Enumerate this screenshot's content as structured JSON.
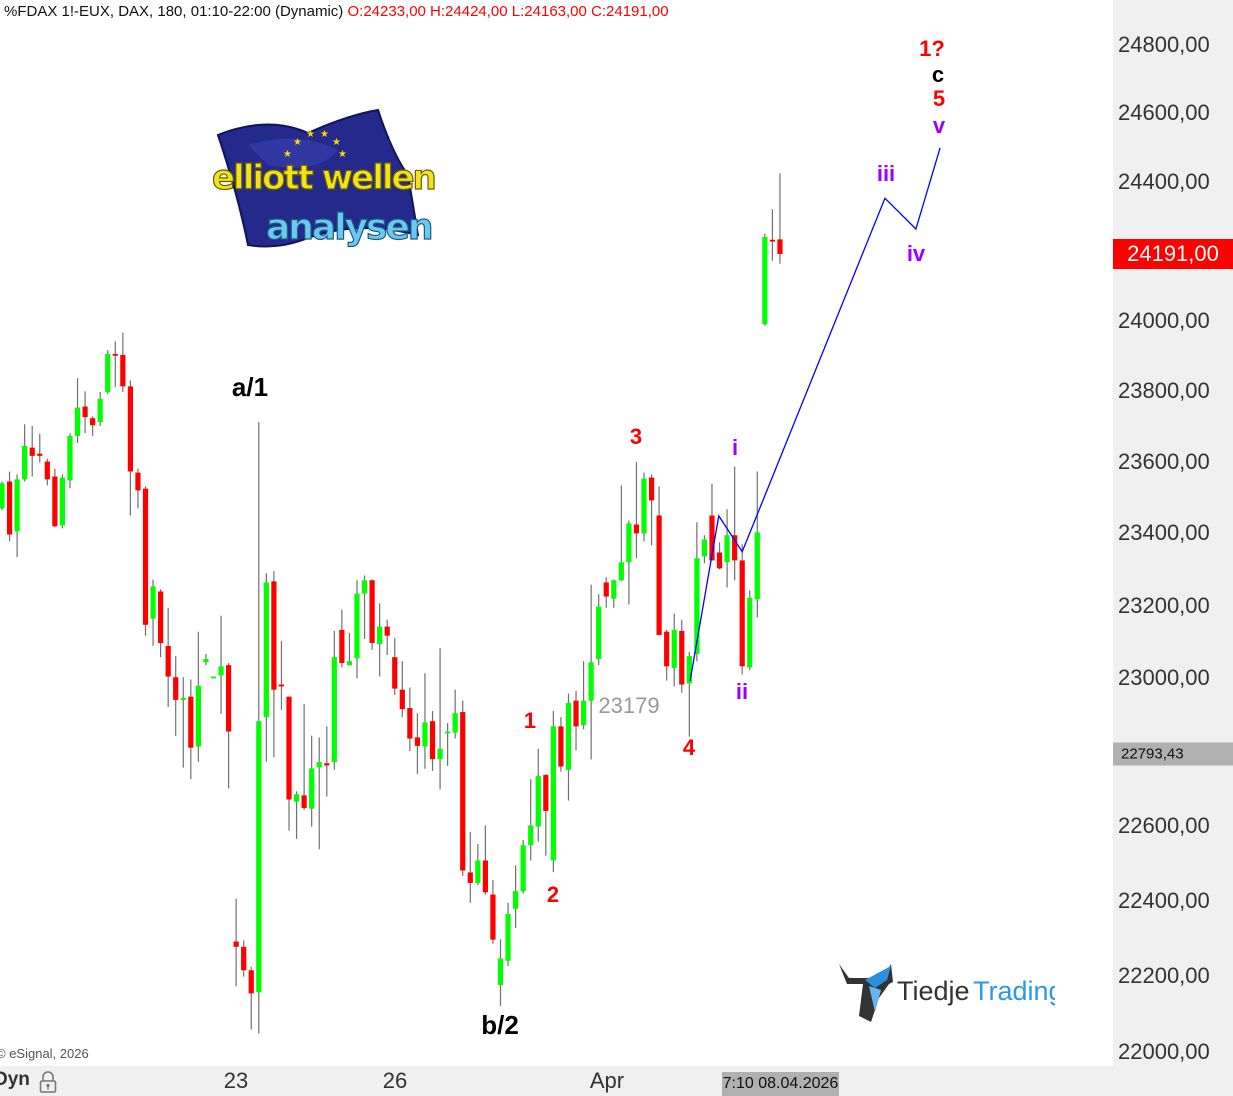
{
  "header": {
    "symbol_info": "* %FDAX 1!-EUX, DAX, 180, 01:10-22:00 (Dynamic)",
    "ohlc": "O:24233,00 H:24424,00 L:24163,00 C:24191,00"
  },
  "copyright": "© eSignal, 2026",
  "time_axis": {
    "mode_label": "Dyn",
    "lock_icon": "padlock-icon",
    "cursor_date": "7:10 08.04.2026"
  },
  "price_axis": {
    "last_price": "24191,00",
    "cursor_price": "22793,43",
    "last_price_color": "#ff0000"
  },
  "logos": {
    "elliott": {
      "line1": "elliott wellen",
      "line2": "analysen"
    },
    "tiedje": {
      "part1": "Tiedje",
      "part2": "Trading"
    }
  },
  "chart_data": {
    "type": "candlestick",
    "title": "* %FDAX 1!-EUX, DAX, 180, 01:10-22:00 (Dynamic)",
    "y_scale": "log",
    "ylim": [
      22000,
      24800
    ],
    "grid": false,
    "up_color": "#00ff00",
    "down_color": "#ff0000",
    "wick_color": "#707070",
    "y_ticks": [
      "24800,00",
      "24600,00",
      "24400,00",
      "24000,00",
      "23800,00",
      "23600,00",
      "23400,00",
      "23200,00",
      "23000,00",
      "22600,00",
      "22400,00",
      "22200,00",
      "22000,00"
    ],
    "y_tick_values": [
      24800,
      24600,
      24400,
      24000,
      23800,
      23600,
      23400,
      23200,
      23000,
      22600,
      22400,
      22200,
      22000
    ],
    "x_ticks": [
      "23",
      "26",
      "Apr"
    ],
    "candles_ohlc": [
      [
        23470,
        23545,
        23465,
        23540
      ],
      [
        23545,
        23573,
        23378,
        23397
      ],
      [
        23406,
        23565,
        23334,
        23551
      ],
      [
        23551,
        23706,
        23545,
        23645
      ],
      [
        23640,
        23701,
        23559,
        23617
      ],
      [
        23623,
        23679,
        23598,
        23617
      ],
      [
        23601,
        23609,
        23534,
        23551
      ],
      [
        23559,
        23581,
        23417,
        23420
      ],
      [
        23422,
        23565,
        23414,
        23556
      ],
      [
        23548,
        23680,
        23526,
        23673
      ],
      [
        23673,
        23836,
        23653,
        23753
      ],
      [
        23756,
        23799,
        23681,
        23726
      ],
      [
        23723,
        23728,
        23673,
        23703
      ],
      [
        23712,
        23797,
        23701,
        23778
      ],
      [
        23797,
        23916,
        23791,
        23905
      ],
      [
        23905,
        23941,
        23811,
        23900
      ],
      [
        23902,
        23966,
        23797,
        23813
      ],
      [
        23813,
        23830,
        23450,
        23573
      ],
      [
        23570,
        23581,
        23470,
        23520
      ],
      [
        23525,
        23531,
        23117,
        23147
      ],
      [
        23164,
        23272,
        23089,
        23253
      ],
      [
        23239,
        23245,
        23058,
        23097
      ],
      [
        23089,
        23194,
        22922,
        23005
      ],
      [
        23003,
        23061,
        22843,
        22941
      ],
      [
        22941,
        23003,
        22757,
        22947
      ],
      [
        22950,
        22997,
        22726,
        22811
      ],
      [
        22814,
        23128,
        22773,
        22980
      ],
      [
        23044,
        23067,
        23036,
        23053
      ],
      [
        23000,
        23005,
        23000,
        23005
      ],
      [
        23008,
        23172,
        22903,
        23033
      ],
      [
        23036,
        23042,
        22701,
        22855
      ],
      [
        22291,
        22405,
        22173,
        22277
      ],
      [
        22277,
        22294,
        22198,
        22215
      ],
      [
        22215,
        22224,
        22059,
        22154
      ],
      [
        22157,
        23712,
        22048,
        22883
      ],
      [
        22894,
        23289,
        22773,
        23264
      ],
      [
        23267,
        23295,
        22785,
        22969
      ],
      [
        22983,
        23103,
        22914,
        22978
      ],
      [
        22950,
        22950,
        22587,
        22671
      ],
      [
        22665,
        22693,
        22565,
        22685
      ],
      [
        22682,
        22930,
        22643,
        22648
      ],
      [
        22646,
        22844,
        22598,
        22755
      ],
      [
        22758,
        22839,
        22537,
        22772
      ],
      [
        22769,
        22869,
        22679,
        22763
      ],
      [
        22772,
        23130,
        22751,
        23058
      ],
      [
        23133,
        23189,
        23030,
        23042
      ],
      [
        23036,
        23125,
        23036,
        23047
      ],
      [
        23055,
        23270,
        23000,
        23233
      ],
      [
        23233,
        23283,
        23108,
        23270
      ],
      [
        23270,
        23272,
        23078,
        23097
      ],
      [
        23094,
        23206,
        23005,
        23142
      ],
      [
        23142,
        23161,
        23064,
        23117
      ],
      [
        23058,
        23111,
        22955,
        22972
      ],
      [
        22969,
        23047,
        22894,
        22916
      ],
      [
        22919,
        22975,
        22802,
        22836
      ],
      [
        22839,
        22905,
        22740,
        22816
      ],
      [
        22814,
        23014,
        22754,
        22880
      ],
      [
        22883,
        22911,
        22748,
        22780
      ],
      [
        22780,
        23083,
        22698,
        22808
      ],
      [
        22850,
        22878,
        22762,
        22855
      ],
      [
        22852,
        22969,
        22836,
        22905
      ],
      [
        22908,
        22939,
        22466,
        22480
      ],
      [
        22475,
        22584,
        22394,
        22447
      ],
      [
        22447,
        22551,
        22441,
        22507
      ],
      [
        22507,
        22601,
        22416,
        22422
      ],
      [
        22416,
        22455,
        22285,
        22296
      ],
      [
        22176,
        22297,
        22121,
        22246
      ],
      [
        22240,
        22394,
        22226,
        22364
      ],
      [
        22378,
        22494,
        22327,
        22425
      ],
      [
        22425,
        22562,
        22419,
        22548
      ],
      [
        22548,
        22726,
        22507,
        22601
      ],
      [
        22598,
        22808,
        22557,
        22734
      ],
      [
        22737,
        22740,
        22520,
        22640
      ],
      [
        22507,
        22911,
        22476,
        22869
      ],
      [
        22869,
        22894,
        22746,
        22760
      ],
      [
        22751,
        22958,
        22668,
        22933
      ],
      [
        22939,
        22966,
        22804,
        22869
      ],
      [
        22872,
        23047,
        22861,
        22939
      ],
      [
        22939,
        23258,
        22779,
        23044
      ],
      [
        23053,
        23231,
        23036,
        23197
      ],
      [
        23264,
        23278,
        23194,
        23225
      ],
      [
        23219,
        23272,
        23194,
        23270
      ],
      [
        23270,
        23534,
        23267,
        23320
      ],
      [
        23320,
        23436,
        23203,
        23428
      ],
      [
        23425,
        23600,
        23331,
        23400
      ],
      [
        23400,
        23570,
        23378,
        23553
      ],
      [
        23556,
        23565,
        23367,
        23492
      ],
      [
        23450,
        23531,
        23119,
        23119
      ],
      [
        23128,
        23133,
        22994,
        23033
      ],
      [
        23028,
        23178,
        22978,
        23133
      ],
      [
        23130,
        23161,
        22961,
        22983
      ],
      [
        22986,
        23072,
        22841,
        23061
      ],
      [
        23067,
        23431,
        23047,
        23331
      ],
      [
        23336,
        23395,
        23317,
        23383
      ],
      [
        23450,
        23539,
        23325,
        23325
      ],
      [
        23347,
        23375,
        23300,
        23303
      ],
      [
        23320,
        23467,
        23250,
        23395
      ],
      [
        23395,
        23587,
        23270,
        23325
      ],
      [
        23325,
        23370,
        23011,
        23033
      ],
      [
        23030,
        23242,
        23022,
        23222
      ],
      [
        23217,
        23573,
        23167,
        23403
      ],
      [
        23990,
        24250,
        23985,
        24240
      ],
      [
        24232,
        24320,
        24172,
        24229
      ],
      [
        24233,
        24424,
        24163,
        24191
      ]
    ],
    "projection": {
      "color": "#0000ff",
      "points_bar_price": [
        [
          91.1,
          22993
        ],
        [
          94.9,
          23449
        ],
        [
          98.0,
          23349
        ],
        [
          116.9,
          24352
        ],
        [
          121.0,
          24263
        ],
        [
          124.2,
          24498
        ]
      ]
    },
    "annotations": [
      {
        "text": "a/1",
        "color": "#000000"
      },
      {
        "text": "b/2",
        "color": "#000000"
      },
      {
        "text": "1",
        "color": "#ff0000"
      },
      {
        "text": "2",
        "color": "#ff0000"
      },
      {
        "text": "3",
        "color": "#ff0000"
      },
      {
        "text": "4",
        "color": "#ff0000"
      },
      {
        "text": "23179",
        "color": "#999999"
      },
      {
        "text": "i",
        "color": "#9900ff"
      },
      {
        "text": "ii",
        "color": "#9900ff"
      },
      {
        "text": "iii",
        "color": "#9900ff"
      },
      {
        "text": "iv",
        "color": "#9900ff"
      },
      {
        "text": "v",
        "color": "#9900ff"
      },
      {
        "text": "5",
        "color": "#ff0000"
      },
      {
        "text": "c",
        "color": "#000000"
      },
      {
        "text": "1?",
        "color": "#ff0000"
      }
    ]
  }
}
